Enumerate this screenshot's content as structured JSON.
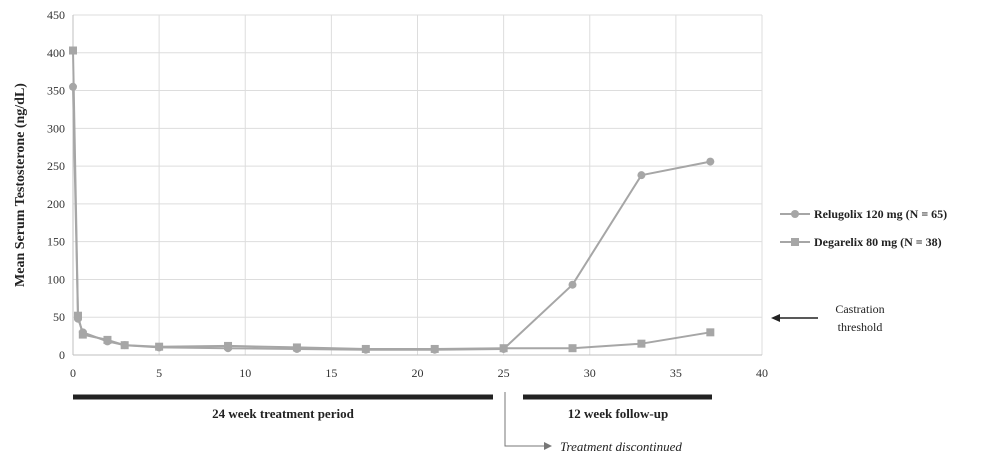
{
  "chart_data": {
    "type": "line",
    "title": "",
    "xlabel": "",
    "ylabel": "Mean Serum Testosterone (ng/dL)",
    "xlim": [
      0,
      40
    ],
    "ylim": [
      0,
      450
    ],
    "x_ticks": [
      0,
      5,
      10,
      15,
      20,
      25,
      30,
      35,
      40
    ],
    "y_ticks": [
      0,
      50,
      100,
      150,
      200,
      250,
      300,
      350,
      400,
      450
    ],
    "grid": "on",
    "legend_position": "right",
    "series": [
      {
        "name": "Relugolix 120 mg (N = 65)",
        "marker": "circle",
        "color": "#a6a6a6",
        "x": [
          0,
          0.29,
          0.57,
          2,
          3,
          5,
          9,
          13,
          17,
          21,
          25,
          29,
          33,
          37
        ],
        "y": [
          355,
          48,
          30,
          18,
          13,
          10,
          9,
          8,
          7,
          7,
          8,
          93,
          238,
          256
        ]
      },
      {
        "name": "Degarelix 80 mg (N = 38)",
        "marker": "square",
        "color": "#a6a6a6",
        "x": [
          0,
          0.29,
          0.57,
          2,
          3,
          5,
          9,
          13,
          17,
          21,
          25,
          29,
          33,
          37
        ],
        "y": [
          403,
          52,
          27,
          20,
          13,
          11,
          12,
          10,
          8,
          8,
          9,
          9,
          15,
          30
        ]
      }
    ],
    "annotations": {
      "castration_line1": "Castration",
      "castration_line2": "threshold",
      "treatment_period": "24 week treatment period",
      "follow_up": "12 week follow-up",
      "discontinued": "Treatment discontinued"
    },
    "colors": {
      "series": "#a6a6a6",
      "grid": "#dddddd",
      "bar": "#222222"
    }
  }
}
